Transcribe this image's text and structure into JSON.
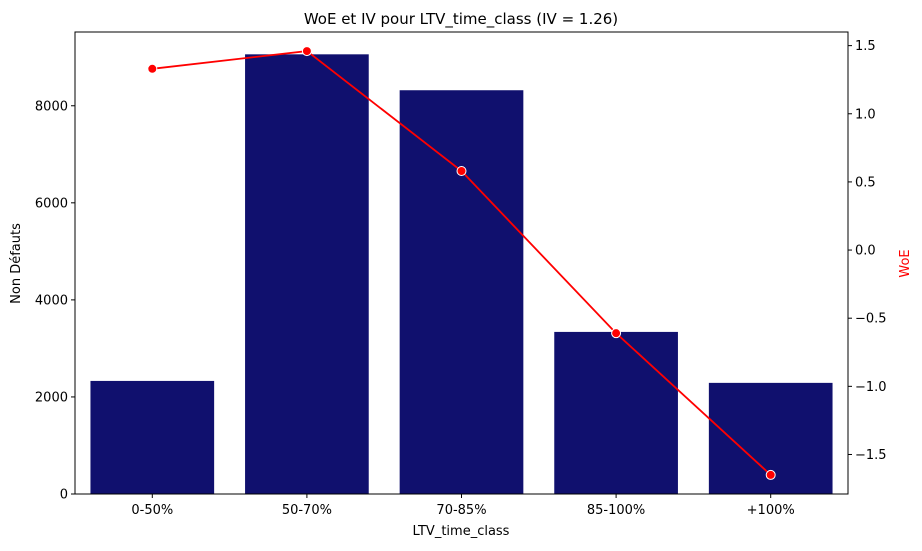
{
  "chart_data": {
    "type": "bar",
    "title": "WoE et IV pour LTV_time_class (IV = 1.26)",
    "xlabel": "LTV_time_class",
    "ylabel": "Non Défauts",
    "y2label": "WoE",
    "categories": [
      "0-50%",
      "50-70%",
      "70-85%",
      "85-100%",
      "+100%"
    ],
    "series": [
      {
        "axis": "left",
        "kind": "bar",
        "color": "#10106e",
        "values": [
          2330,
          9060,
          8320,
          3340,
          2290
        ]
      },
      {
        "axis": "right",
        "kind": "line",
        "color": "#ff0000",
        "marker": "circle",
        "values": [
          1.33,
          1.46,
          0.58,
          -0.61,
          -1.65
        ]
      }
    ],
    "ylim": [
      0,
      9520
    ],
    "y_ticks": [
      0,
      2000,
      4000,
      6000,
      8000
    ],
    "y_tick_labels": [
      "0",
      "2000",
      "4000",
      "6000",
      "8000"
    ],
    "y2lim": [
      -1.79,
      1.6
    ],
    "y2_ticks": [
      -1.5,
      -1.0,
      -0.5,
      0.0,
      0.5,
      1.0,
      1.5
    ],
    "y2_tick_labels": [
      "−1.5",
      "−1.0",
      "−0.5",
      "0.0",
      "0.5",
      "1.0",
      "1.5"
    ],
    "y2label_color": "#ff0000",
    "grid": false
  }
}
